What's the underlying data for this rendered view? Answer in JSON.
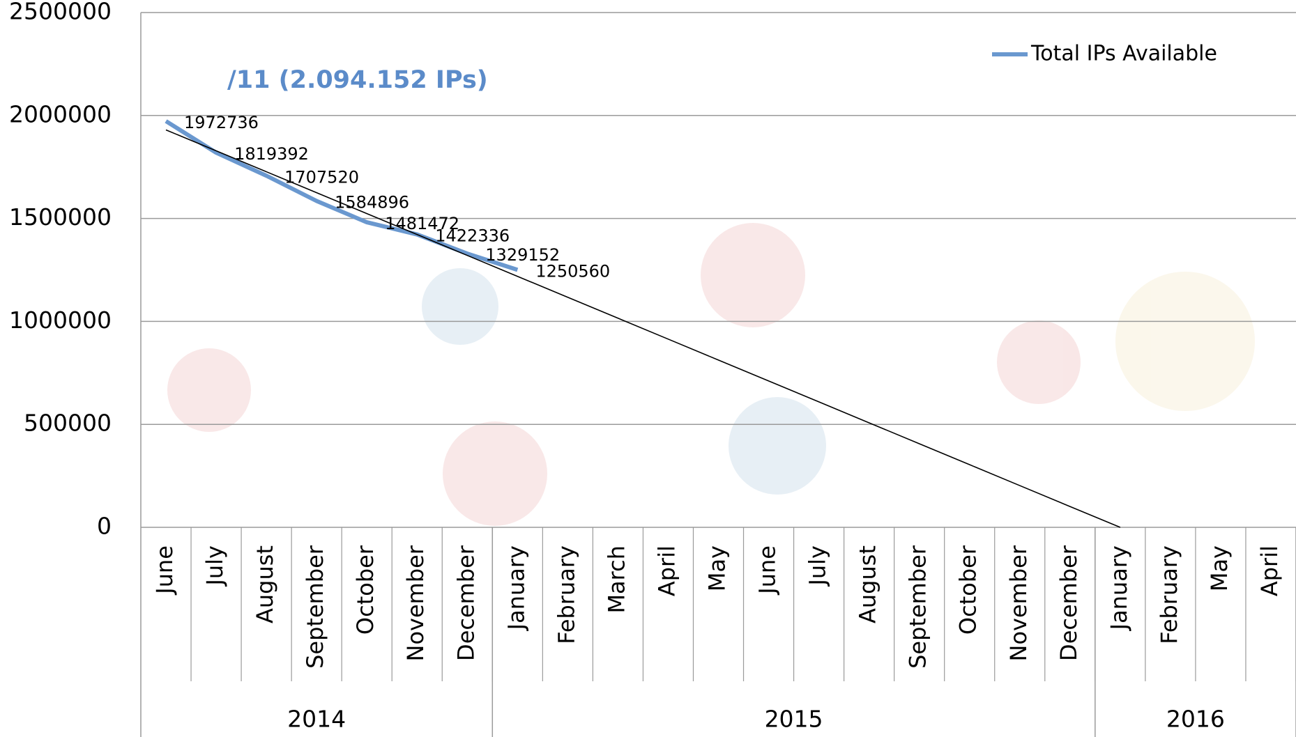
{
  "chart_data": {
    "type": "line",
    "annotation": "/11 (2.094.152 IPs)",
    "categories": [
      "June",
      "July",
      "August",
      "September",
      "October",
      "November",
      "December",
      "January",
      "February",
      "March",
      "April",
      "May",
      "June",
      "July",
      "August",
      "September",
      "October",
      "November",
      "December",
      "January",
      "February",
      "May",
      "April"
    ],
    "groups": [
      {
        "label": "2014",
        "span": 7
      },
      {
        "label": "2015",
        "span": 12
      },
      {
        "label": "2016",
        "span": 4
      }
    ],
    "series": [
      {
        "name": "Total IPs Available",
        "color": "#6a98cf",
        "values": [
          1972736,
          1819392,
          1707520,
          1584896,
          1481472,
          1422336,
          1329152,
          1250560,
          null,
          null,
          null,
          null,
          null,
          null,
          null,
          null,
          null,
          null,
          null,
          null,
          null,
          null,
          null
        ]
      }
    ],
    "trendline": {
      "color": "#000000",
      "values": [
        1930000,
        1828400,
        1726800,
        1625200,
        1523600,
        1422000,
        1320400,
        1218800,
        1117200,
        1015600,
        914000,
        812400,
        710800,
        609200,
        507600,
        406000,
        304400,
        202800,
        101200,
        0,
        null,
        null,
        null
      ]
    },
    "ylim": [
      0,
      2500000
    ],
    "yticks": [
      0,
      500000,
      1000000,
      1500000,
      2000000,
      2500000
    ],
    "grid": true,
    "legend": "top-right",
    "data_labels": true
  }
}
